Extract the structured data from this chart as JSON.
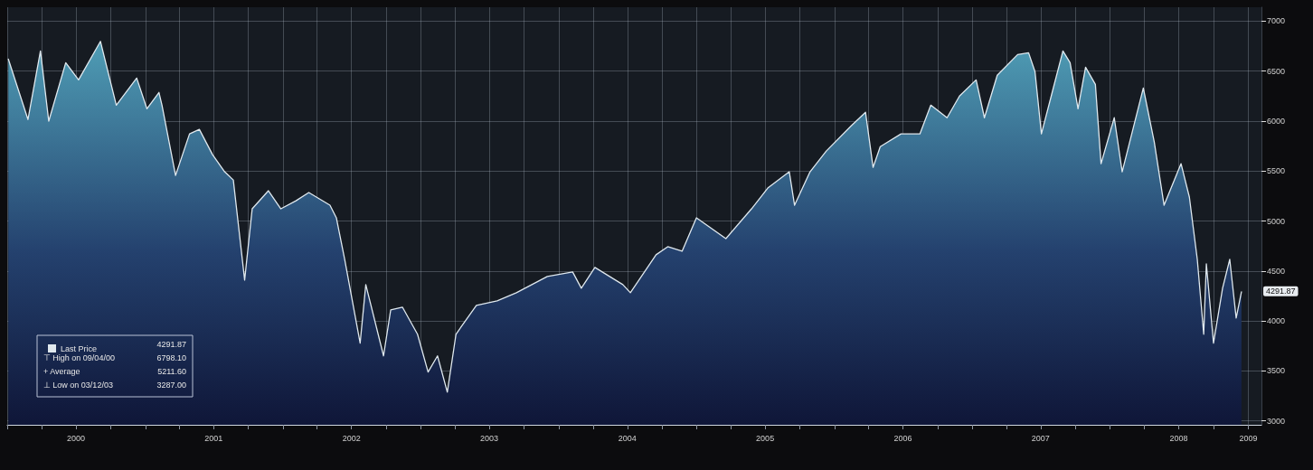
{
  "chart_data": {
    "type": "area",
    "series": [
      {
        "name": "Last Price",
        "color": "#dfe8ee",
        "x": [
          "2000-01-04",
          "2000-02-25",
          "2000-03-29",
          "2000-04-20",
          "2000-06-04",
          "2000-07-08",
          "2000-09-04",
          "2000-10-16",
          "2000-12-09",
          "2001-01-05",
          "2001-02-06",
          "2001-02-14",
          "2001-03-22",
          "2001-04-28",
          "2001-05-24",
          "2001-06-28",
          "2001-07-30",
          "2001-08-22",
          "2001-09-21",
          "2001-10-11",
          "2001-11-23",
          "2001-12-26",
          "2002-02-04",
          "2002-03-10",
          "2002-05-05",
          "2002-05-22",
          "2002-06-13",
          "2002-07-24",
          "2002-08-08",
          "2002-09-24",
          "2002-10-13",
          "2002-11-13",
          "2002-12-23",
          "2003-01-20",
          "2003-02-14",
          "2003-03-12",
          "2003-04-04",
          "2003-05-28",
          "2003-07-22",
          "2003-09-11",
          "2003-12-02",
          "2004-02-07",
          "2004-03-01",
          "2004-04-06",
          "2004-06-19",
          "2004-07-09",
          "2004-09-15",
          "2004-10-16",
          "2004-11-23",
          "2004-12-31",
          "2005-03-19",
          "2005-05-26",
          "2005-07-08",
          "2005-09-03",
          "2005-09-17",
          "2005-10-28",
          "2005-12-10",
          "2006-02-14",
          "2006-03-24",
          "2006-04-13",
          "2006-05-02",
          "2006-06-26",
          "2006-08-15",
          "2006-09-13",
          "2006-10-26",
          "2006-11-28",
          "2007-01-11",
          "2007-02-02",
          "2007-03-08",
          "2007-05-01",
          "2007-05-30",
          "2007-06-16",
          "2007-07-03",
          "2007-07-29",
          "2007-08-29",
          "2007-09-17",
          "2007-10-08",
          "2007-10-28",
          "2007-11-23",
          "2007-12-08",
          "2008-01-12",
          "2008-02-02",
          "2008-03-29",
          "2008-04-27",
          "2008-05-23",
          "2008-07-07",
          "2008-07-29",
          "2008-08-19",
          "2008-09-05",
          "2008-09-12",
          "2008-10-01",
          "2008-10-25",
          "2008-11-13",
          "2008-11-30",
          "2008-12-14"
        ],
        "values": [
          6620,
          6016,
          6702,
          6000,
          6585,
          6413,
          6798.1,
          6160,
          6431,
          6124,
          6287,
          6160,
          5456,
          5872,
          5917,
          5664,
          5493,
          5411,
          4409,
          5122,
          5303,
          5122,
          5203,
          5285,
          5158,
          5032,
          4616,
          3777,
          4364,
          3650,
          4111,
          4138,
          3867,
          3488,
          3650,
          3287,
          3867,
          4156,
          4201,
          4282,
          4445,
          4490,
          4327,
          4535,
          4364,
          4282,
          4662,
          4743,
          4698,
          5032,
          4824,
          5122,
          5330,
          5493,
          5158,
          5493,
          5700,
          5953,
          6088,
          5537,
          5745,
          5872,
          5872,
          6160,
          6034,
          6251,
          6413,
          6034,
          6459,
          6666,
          6684,
          6495,
          5872,
          6251,
          6702,
          6585,
          6124,
          6540,
          6368,
          5574,
          6034,
          5493,
          6332,
          5790,
          5158,
          5574,
          5240,
          4616,
          3867,
          4571,
          3777,
          4327,
          4616,
          4029,
          4291.87
        ]
      }
    ],
    "xlim": [
      "2000-01-01",
      "2009-02-05"
    ],
    "xticks": [
      {
        "value": "2000-01-01",
        "label": null
      },
      {
        "value": "2000-04-01",
        "label": null
      },
      {
        "value": "2000-07-01",
        "label": "2000"
      },
      {
        "value": "2000-10-01",
        "label": null
      },
      {
        "value": "2001-01-01",
        "label": null
      },
      {
        "value": "2001-04-01",
        "label": null
      },
      {
        "value": "2001-07-01",
        "label": "2001"
      },
      {
        "value": "2001-10-01",
        "label": null
      },
      {
        "value": "2002-01-01",
        "label": null
      },
      {
        "value": "2002-04-01",
        "label": null
      },
      {
        "value": "2002-07-01",
        "label": "2002"
      },
      {
        "value": "2002-10-01",
        "label": null
      },
      {
        "value": "2003-01-01",
        "label": null
      },
      {
        "value": "2003-04-01",
        "label": null
      },
      {
        "value": "2003-07-01",
        "label": "2003"
      },
      {
        "value": "2003-10-01",
        "label": null
      },
      {
        "value": "2004-01-01",
        "label": null
      },
      {
        "value": "2004-04-01",
        "label": null
      },
      {
        "value": "2004-07-01",
        "label": "2004"
      },
      {
        "value": "2004-10-01",
        "label": null
      },
      {
        "value": "2005-01-01",
        "label": null
      },
      {
        "value": "2005-04-01",
        "label": null
      },
      {
        "value": "2005-07-01",
        "label": "2005"
      },
      {
        "value": "2005-10-01",
        "label": null
      },
      {
        "value": "2006-01-01",
        "label": null
      },
      {
        "value": "2006-04-01",
        "label": null
      },
      {
        "value": "2006-07-01",
        "label": "2006"
      },
      {
        "value": "2006-10-01",
        "label": null
      },
      {
        "value": "2007-01-01",
        "label": null
      },
      {
        "value": "2007-04-01",
        "label": null
      },
      {
        "value": "2007-07-01",
        "label": "2007"
      },
      {
        "value": "2007-10-01",
        "label": null
      },
      {
        "value": "2008-01-01",
        "label": null
      },
      {
        "value": "2008-04-01",
        "label": null
      },
      {
        "value": "2008-07-01",
        "label": "2008"
      },
      {
        "value": "2008-10-01",
        "label": null
      },
      {
        "value": "2009-01-01",
        "label": "2009"
      }
    ],
    "ylim": [
      2960,
      7140
    ],
    "yticks": [
      3000,
      3500,
      4000,
      4500,
      5000,
      5500,
      6000,
      6500,
      7000
    ],
    "grid": true,
    "legend": "bottom left",
    "marker": "none",
    "line_style": "solid",
    "annotations": [
      "4291.87",
      "⊤ High on 09/04/00",
      "6798.10",
      "+ Average",
      "5211.60",
      "⊥ Low on 03/12/03",
      "3287.00",
      {
        "text": "4291.87",
        "x": "2008-12-14",
        "y": 4291.87
      }
    ]
  }
}
